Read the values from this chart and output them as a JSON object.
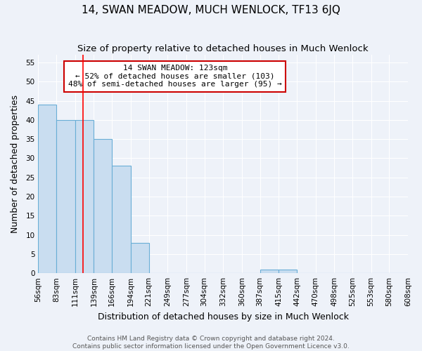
{
  "title": "14, SWAN MEADOW, MUCH WENLOCK, TF13 6JQ",
  "subtitle": "Size of property relative to detached houses in Much Wenlock",
  "xlabel": "Distribution of detached houses by size in Much Wenlock",
  "ylabel": "Number of detached properties",
  "bin_edges": [
    56,
    83,
    111,
    139,
    166,
    194,
    221,
    249,
    277,
    304,
    332,
    360,
    387,
    415,
    442,
    470,
    498,
    525,
    553,
    580,
    608
  ],
  "bar_heights": [
    44,
    40,
    40,
    35,
    28,
    8,
    0,
    0,
    0,
    0,
    0,
    0,
    1,
    1,
    0,
    0,
    0,
    0,
    0,
    0
  ],
  "bar_color": "#c9ddf0",
  "bar_edge_color": "#6aaed6",
  "red_line_x": 123,
  "ylim": [
    0,
    57
  ],
  "yticks": [
    0,
    5,
    10,
    15,
    20,
    25,
    30,
    35,
    40,
    45,
    50,
    55
  ],
  "annotation_title": "14 SWAN MEADOW: 123sqm",
  "annotation_line1": "← 52% of detached houses are smaller (103)",
  "annotation_line2": "48% of semi-detached houses are larger (95) →",
  "annotation_box_color": "#ffffff",
  "annotation_box_edge_color": "#cc0000",
  "footer_line1": "Contains HM Land Registry data © Crown copyright and database right 2024.",
  "footer_line2": "Contains public sector information licensed under the Open Government Licence v3.0.",
  "background_color": "#eef2f9",
  "grid_color": "#ffffff",
  "title_fontsize": 11,
  "subtitle_fontsize": 9.5,
  "axis_label_fontsize": 9,
  "tick_label_fontsize": 7.5,
  "annotation_fontsize": 8,
  "footer_fontsize": 6.5
}
